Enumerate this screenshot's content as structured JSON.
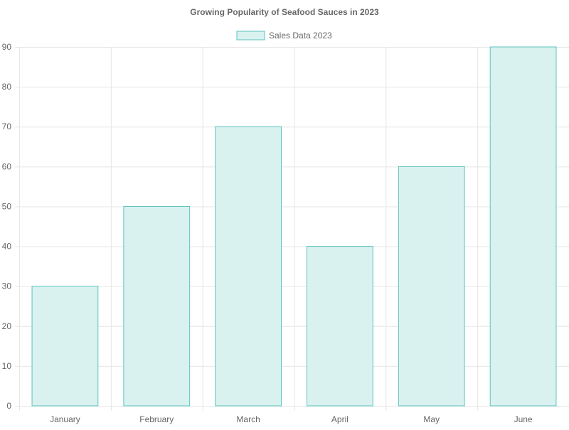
{
  "chart_data": {
    "type": "bar",
    "title": "Growing Popularity of Seafood Sauces in 2023",
    "categories": [
      "January",
      "February",
      "March",
      "April",
      "May",
      "June"
    ],
    "series": [
      {
        "name": "Sales Data 2023",
        "values": [
          30,
          50,
          70,
          40,
          60,
          90
        ]
      }
    ],
    "xlabel": "",
    "ylabel": "",
    "ylim": [
      0,
      90
    ],
    "yticks": [
      0,
      10,
      20,
      30,
      40,
      50,
      60,
      70,
      80,
      90
    ],
    "grid": true,
    "legend_position": "top-center"
  },
  "colors": {
    "bar_fill": "#d9f1ef",
    "bar_stroke": "#5cc4bf",
    "grid": "#e6e6e6",
    "axis_text": "#666666",
    "title_text": "#666666"
  }
}
